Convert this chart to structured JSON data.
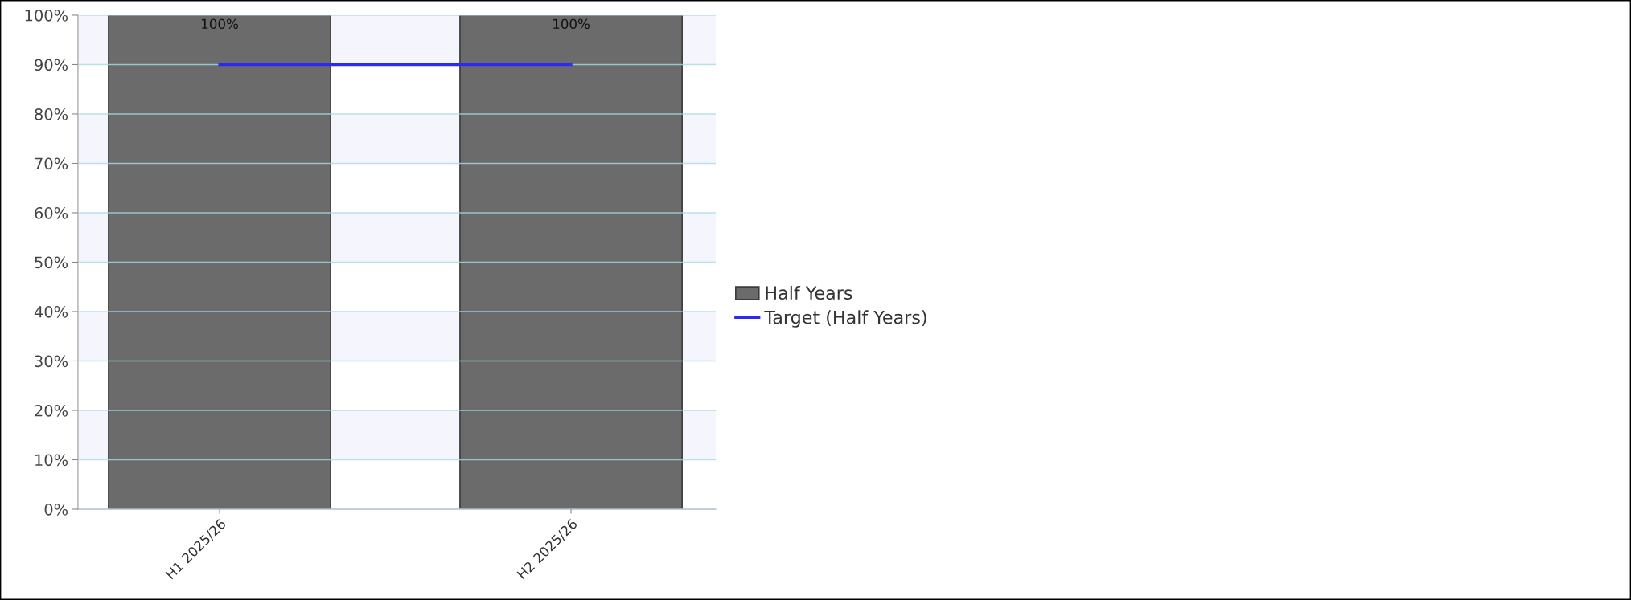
{
  "chart_data": {
    "type": "bar",
    "categories": [
      "H1 2025/26",
      "H2 2025/26"
    ],
    "series": [
      {
        "name": "Half Years",
        "color": "#6b6b6b",
        "values": [
          100,
          100
        ],
        "value_labels": [
          "100%",
          "100%"
        ]
      },
      {
        "name": "Target (Half Years)",
        "type": "line",
        "color": "#2b2bf5",
        "values": [
          90,
          90
        ]
      }
    ],
    "ylim": [
      0,
      100
    ],
    "yticks": [
      {
        "value": 0,
        "label": "0%"
      },
      {
        "value": 10,
        "label": "10%"
      },
      {
        "value": 20,
        "label": "20%"
      },
      {
        "value": 30,
        "label": "30%"
      },
      {
        "value": 40,
        "label": "40%"
      },
      {
        "value": 50,
        "label": "50%"
      },
      {
        "value": 60,
        "label": "60%"
      },
      {
        "value": 70,
        "label": "70%"
      },
      {
        "value": 80,
        "label": "80%"
      },
      {
        "value": 90,
        "label": "90%"
      },
      {
        "value": 100,
        "label": "100%"
      }
    ],
    "bands": [
      {
        "axis": "y",
        "from": 10,
        "to": 20,
        "color": "#f5f6fd"
      },
      {
        "axis": "y",
        "from": 30,
        "to": 40,
        "color": "#f5f6fd"
      },
      {
        "axis": "y",
        "from": 50,
        "to": 60,
        "color": "#f5f6fd"
      },
      {
        "axis": "y",
        "from": 70,
        "to": 80,
        "color": "#f5f6fd"
      },
      {
        "axis": "y",
        "from": 90,
        "to": 100,
        "color": "#f5f6fd"
      }
    ],
    "grid": "y",
    "legend": "right",
    "marker": "none",
    "line_style": "solid"
  }
}
